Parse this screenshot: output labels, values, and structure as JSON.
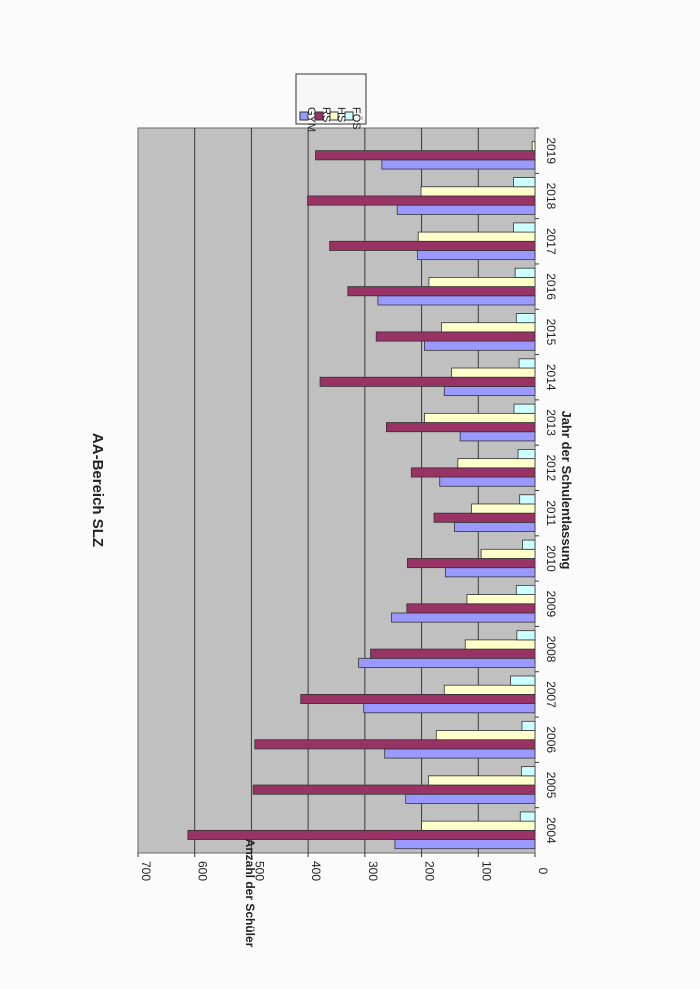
{
  "chart_data": {
    "type": "bar",
    "orientation": "horizontal-rotated-page",
    "title": "AA-Bereich SLZ",
    "xlabel": "Jahr der Schulentlassung",
    "ylabel": "Anzahl der Schüler",
    "categories": [
      "2004",
      "2005",
      "2006",
      "2007",
      "2008",
      "2009",
      "2010",
      "2011",
      "2012",
      "2013",
      "2014",
      "2015",
      "2016",
      "2017",
      "2018",
      "2019"
    ],
    "value_axis": {
      "min": 0,
      "max": 700,
      "ticks": [
        0,
        100,
        200,
        300,
        400,
        500,
        600,
        700
      ]
    },
    "grid": true,
    "legend_position": "top-right",
    "series": [
      {
        "name": "GYM",
        "color": "#9999ff",
        "values": [
          247,
          228,
          265,
          302,
          311,
          253,
          158,
          142,
          168,
          132,
          160,
          195,
          277,
          207,
          243,
          270
        ]
      },
      {
        "name": "RS",
        "color": "#993366",
        "values": [
          612,
          497,
          494,
          413,
          290,
          226,
          225,
          178,
          218,
          262,
          379,
          280,
          330,
          362,
          401,
          387
        ]
      },
      {
        "name": "HS",
        "color": "#ffffcc",
        "values": [
          200,
          188,
          174,
          160,
          123,
          120,
          95,
          112,
          136,
          195,
          147,
          165,
          187,
          206,
          201,
          5
        ]
      },
      {
        "name": "FÖS",
        "color": "#ccffff",
        "values": [
          26,
          24,
          23,
          43,
          32,
          33,
          22,
          27,
          30,
          37,
          28,
          33,
          35,
          38,
          38,
          0
        ]
      }
    ]
  }
}
